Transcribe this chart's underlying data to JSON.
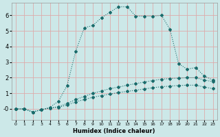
{
  "title": "",
  "xlabel": "Humidex (Indice chaleur)",
  "bg_color": "#cce8e8",
  "line_color": "#1a6b6b",
  "grid_color": "#ddaaaa",
  "xlim": [
    -0.5,
    23.5
  ],
  "ylim": [
    -0.7,
    6.8
  ],
  "yticks": [
    0,
    1,
    2,
    3,
    4,
    5,
    6
  ],
  "xticks": [
    0,
    1,
    2,
    3,
    4,
    5,
    6,
    7,
    8,
    9,
    10,
    11,
    12,
    13,
    14,
    15,
    16,
    17,
    18,
    19,
    20,
    21,
    22,
    23
  ],
  "curve1_x": [
    0,
    1,
    2,
    3,
    4,
    5,
    6,
    7,
    8,
    9,
    10,
    11,
    12,
    13,
    14,
    15,
    16,
    17,
    18,
    19,
    20,
    21,
    22,
    23
  ],
  "curve1_y": [
    0.0,
    0.0,
    -0.2,
    -0.05,
    0.1,
    0.5,
    1.5,
    3.7,
    5.2,
    5.35,
    5.85,
    6.2,
    6.55,
    6.55,
    5.95,
    5.95,
    5.95,
    6.0,
    5.1,
    2.9,
    2.55,
    2.65,
    2.1,
    1.85
  ],
  "curve2_x": [
    0,
    1,
    2,
    3,
    4,
    5,
    6,
    7,
    8,
    9,
    10,
    11,
    12,
    13,
    14,
    15,
    16,
    17,
    18,
    19,
    20,
    21,
    22,
    23
  ],
  "curve2_y": [
    0.0,
    0.0,
    -0.2,
    -0.05,
    0.05,
    0.15,
    0.35,
    0.6,
    0.8,
    1.0,
    1.15,
    1.3,
    1.4,
    1.52,
    1.62,
    1.72,
    1.82,
    1.9,
    1.95,
    1.97,
    2.0,
    2.0,
    1.85,
    1.75
  ],
  "curve3_x": [
    0,
    1,
    2,
    3,
    4,
    5,
    6,
    7,
    8,
    9,
    10,
    11,
    12,
    13,
    14,
    15,
    16,
    17,
    18,
    19,
    20,
    21,
    22,
    23
  ],
  "curve3_y": [
    0.0,
    0.0,
    -0.2,
    -0.05,
    0.05,
    0.1,
    0.25,
    0.45,
    0.6,
    0.75,
    0.85,
    0.95,
    1.05,
    1.12,
    1.2,
    1.28,
    1.36,
    1.42,
    1.46,
    1.5,
    1.52,
    1.52,
    1.4,
    1.3
  ]
}
